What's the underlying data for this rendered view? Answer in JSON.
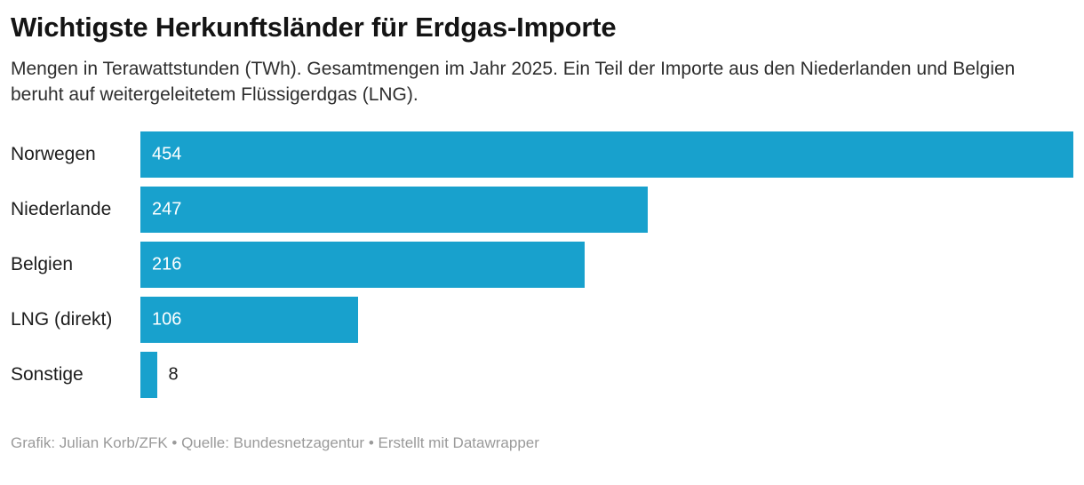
{
  "header": {
    "title": "Wichtigste Herkunftsländer für Erdgas-Importe",
    "subtitle": "Mengen in Terawattstunden (TWh). Gesamtmengen im Jahr 2025. Ein Teil der Importe aus den Niederlanden und Belgien beruht auf weitergeleitetem Flüssigerdgas (LNG)."
  },
  "chart_data": {
    "type": "bar",
    "orientation": "horizontal",
    "title": "Wichtigste Herkunftsländer für Erdgas-Importe",
    "subtitle": "Mengen in Terawattstunden (TWh). Gesamtmengen im Jahr 2025. Ein Teil der Importe aus den Niederlanden und Belgien beruht auf weitergeleitetem Flüssigerdgas (LNG).",
    "unit": "TWh",
    "year": "2025",
    "categories": [
      "Norwegen",
      "Niederlande",
      "Belgien",
      "LNG (direkt)",
      "Sonstige"
    ],
    "values": [
      454,
      247,
      216,
      106,
      8
    ],
    "value_labels": [
      "454",
      "247",
      "216",
      "106",
      "8"
    ],
    "axis_max": 454,
    "grid": false,
    "legend": false,
    "bar_color": "#18a1cd",
    "value_label_inside_color": "#ffffff",
    "value_label_outside_color": "#1d1d1d"
  },
  "footer": {
    "credit": "Grafik: Julian Korb/ZFK • Quelle: Bundesnetzagentur • Erstellt mit Datawrapper"
  }
}
